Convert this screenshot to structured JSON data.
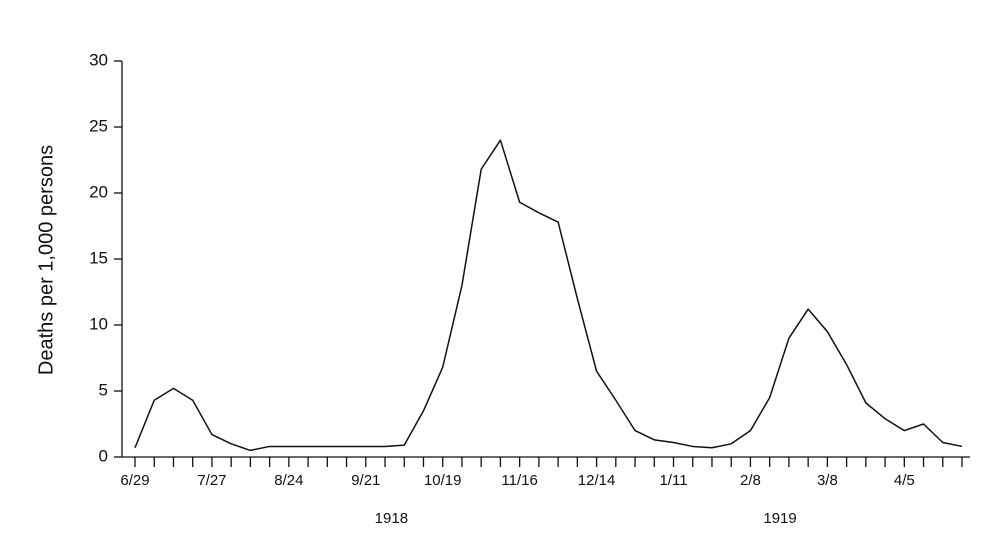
{
  "chart_data": {
    "type": "line",
    "y_label": "Deaths per 1,000 persons",
    "categories": [
      "6/29",
      null,
      null,
      null,
      "7/27",
      null,
      null,
      null,
      "8/24",
      null,
      null,
      null,
      "9/21",
      null,
      null,
      null,
      "10/19",
      null,
      null,
      null,
      "11/16",
      null,
      null,
      null,
      "12/14",
      null,
      null,
      null,
      "1/11",
      null,
      null,
      null,
      "2/8",
      null,
      null,
      null,
      "3/8",
      null,
      null,
      null,
      "4/5",
      null,
      null,
      null
    ],
    "values": [
      0.7,
      4.3,
      5.2,
      4.3,
      1.7,
      1.0,
      0.5,
      0.8,
      0.8,
      0.8,
      0.8,
      0.8,
      0.8,
      0.8,
      0.9,
      3.5,
      6.8,
      13,
      21.8,
      24,
      19.3,
      18.5,
      17.8,
      12,
      6.5,
      4.3,
      2,
      1.3,
      1.1,
      0.8,
      0.7,
      1.0,
      2,
      4.5,
      9,
      11.2,
      9.5,
      7,
      4.1,
      2.9,
      2.0,
      2.5,
      1.1,
      0.8
    ],
    "color": "#111111",
    "year_labels": [
      "1918",
      "1919"
    ],
    "ylim": [
      0,
      30
    ],
    "yticks": [
      0,
      5,
      10,
      15,
      20,
      25,
      30
    ]
  }
}
